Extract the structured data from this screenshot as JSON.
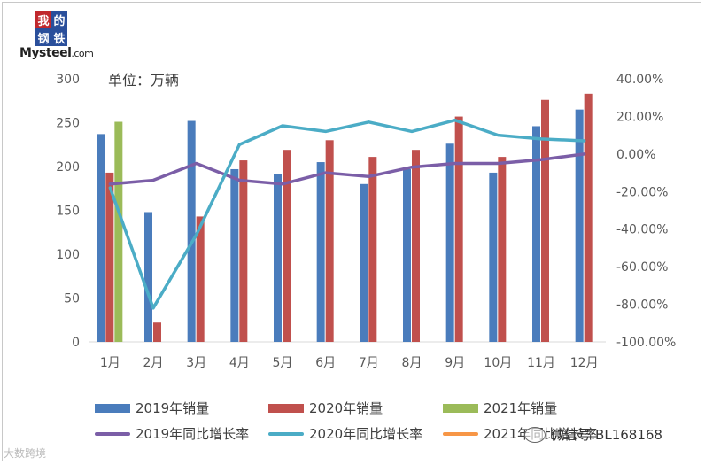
{
  "logo": {
    "chars": [
      "我",
      "的",
      "钢",
      "铁"
    ],
    "text_main": "Mysteel",
    "text_suffix": ".com"
  },
  "unit_label": "单位：万辆",
  "colors": {
    "bar_2019": "#4a7cbc",
    "bar_2020": "#c0504d",
    "bar_2021": "#9bbb59",
    "line_2019": "#7b5ea7",
    "line_2020": "#4bacc6",
    "line_2021": "#f79646",
    "axis_text": "#595959",
    "axis_line": "#d9d9d9"
  },
  "chart_data": {
    "type": "bar+line",
    "categories": [
      "1月",
      "2月",
      "3月",
      "4月",
      "5月",
      "6月",
      "7月",
      "8月",
      "9月",
      "10月",
      "11月",
      "12月"
    ],
    "left_axis": {
      "ticks": [
        "0",
        "50",
        "100",
        "150",
        "200",
        "250",
        "300"
      ],
      "ylim": [
        0,
        300
      ]
    },
    "right_axis": {
      "ticks": [
        "-100.00%",
        "-80.00%",
        "-60.00%",
        "-40.00%",
        "-20.00%",
        "0.00%",
        "20.00%",
        "40.00%"
      ],
      "ylim": [
        -100,
        40
      ]
    },
    "bar_series": [
      {
        "name": "2019年销量",
        "values": [
          237,
          148,
          252,
          197,
          191,
          205,
          180,
          197,
          226,
          193,
          246,
          265
        ]
      },
      {
        "name": "2020年销量",
        "values": [
          193,
          22,
          143,
          207,
          219,
          230,
          211,
          219,
          257,
          211,
          276,
          283
        ]
      },
      {
        "name": "2021年销量",
        "values": [
          251,
          null,
          null,
          null,
          null,
          null,
          null,
          null,
          null,
          null,
          null,
          null
        ]
      }
    ],
    "line_series": [
      {
        "name": "2019年同比增长率",
        "values": [
          -16,
          -14,
          -5,
          -14,
          -16,
          -10,
          -12,
          -7,
          -5,
          -5,
          -3,
          0
        ]
      },
      {
        "name": "2020年同比增长率",
        "values": [
          -18,
          -82,
          -43,
          5,
          15,
          12,
          17,
          12,
          18,
          10,
          8,
          7
        ]
      },
      {
        "name": "2021年同比增长率",
        "values": []
      }
    ],
    "grid": false,
    "legend_position": "bottom"
  },
  "watermark_left": "大数跨境",
  "watermark_right": "微信号:BL168168"
}
